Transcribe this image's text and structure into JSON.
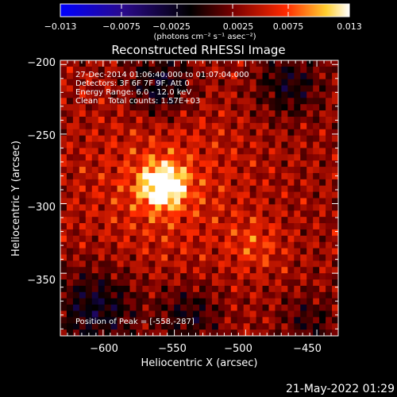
{
  "chart_data": {
    "type": "heatmap",
    "title": "Reconstructed RHESSI Image",
    "xlabel": "Heliocentric X (arcsec)",
    "ylabel": "Heliocentric Y (arcsec)",
    "xlim": [
      -630,
      -435
    ],
    "ylim": [
      -395,
      -197
    ],
    "x_ticks": [
      -600,
      -550,
      -500,
      -450
    ],
    "x_tick_labels": [
      "−600",
      "−550",
      "−500",
      "−450"
    ],
    "y_ticks": [
      -200,
      -250,
      -300,
      -350
    ],
    "y_tick_labels": [
      "−200",
      "−250",
      "−300",
      "−350"
    ],
    "colorbar": {
      "range": [
        -0.013,
        0.013
      ],
      "ticks": [
        -0.013,
        -0.0075,
        -0.0025,
        0.0025,
        0.0075,
        0.013
      ],
      "tick_labels": [
        "−0.013",
        "−0.0075",
        "−0.0025",
        "0.0025",
        "0.0075",
        "0.013"
      ],
      "unit_label": "(photons cm⁻² s⁻¹ asec⁻²)",
      "colormap": [
        "#0000ff",
        "#2a0a8a",
        "#000000",
        "#7a0000",
        "#ff2a00",
        "#ffcf30",
        "#ffffff"
      ]
    },
    "peak": {
      "x": -558,
      "y": -287
    },
    "grid": false,
    "info_lines": [
      "27-Dec-2014 01:06:40.000 to 01:07:04.000",
      "Detectors: 3F 6F 7F 9F, Att 0",
      "Energy Range: 6.0 - 12.0 keV",
      "Clean    Total counts: 1.57E+03"
    ],
    "peak_label": "Position of Peak = [-558,-287]"
  },
  "footer": {
    "timestamp": "21-May-2022 01:29"
  }
}
